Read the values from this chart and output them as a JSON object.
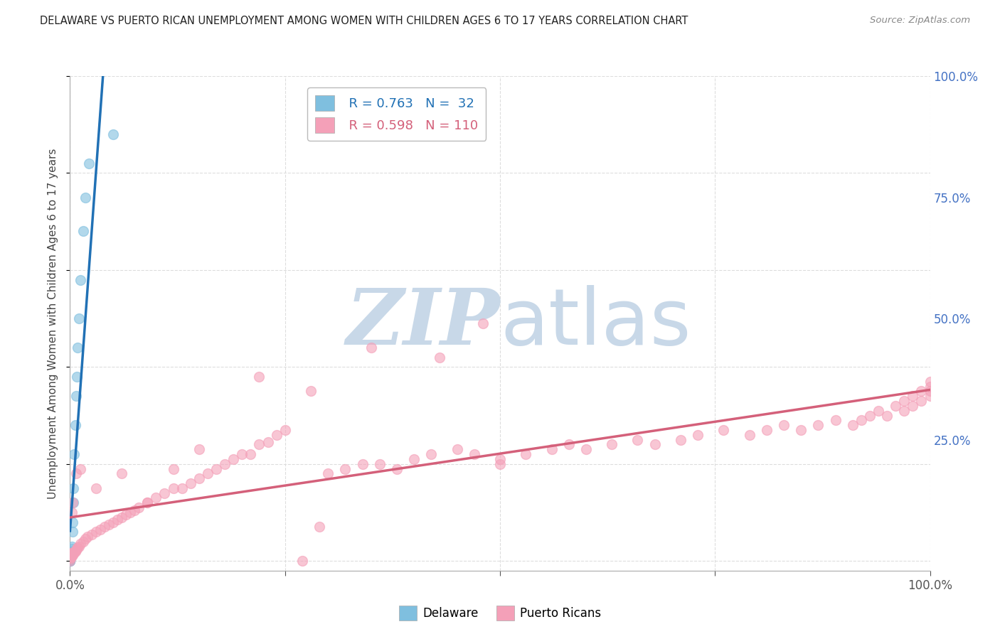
{
  "title": "DELAWARE VS PUERTO RICAN UNEMPLOYMENT AMONG WOMEN WITH CHILDREN AGES 6 TO 17 YEARS CORRELATION CHART",
  "source": "Source: ZipAtlas.com",
  "ylabel": "Unemployment Among Women with Children Ages 6 to 17 years",
  "xlim": [
    0,
    1.0
  ],
  "ylim": [
    -0.02,
    1.0
  ],
  "xtick_positions": [
    0.0,
    0.25,
    0.5,
    0.75,
    1.0
  ],
  "xtick_labels_show": [
    "0.0%",
    "",
    "",
    "",
    "100.0%"
  ],
  "ytick_right_positions": [
    0.0,
    0.25,
    0.5,
    0.75,
    1.0
  ],
  "ytick_right_labels": [
    "",
    "25.0%",
    "50.0%",
    "75.0%",
    "100.0%"
  ],
  "delaware_color": "#7fbfdf",
  "puerto_color": "#f4a0b8",
  "delaware_line_color": "#2171b5",
  "puerto_line_color": "#d4607a",
  "watermark_zip_color": "#c8d8e8",
  "watermark_atlas_color": "#c8d8e8",
  "background_color": "#ffffff",
  "grid_color": "#dddddd",
  "delaware_scatter_x": [
    0.0,
    0.0,
    0.0,
    0.0,
    0.0,
    0.0,
    0.0,
    0.0,
    0.0,
    0.0,
    0.0,
    0.0,
    0.0,
    0.001,
    0.001,
    0.002,
    0.002,
    0.003,
    0.003,
    0.004,
    0.004,
    0.005,
    0.006,
    0.007,
    0.008,
    0.009,
    0.01,
    0.012,
    0.015,
    0.018,
    0.022,
    0.05
  ],
  "delaware_scatter_y": [
    0.0,
    0.0,
    0.0,
    0.0,
    0.0,
    0.0,
    0.003,
    0.005,
    0.007,
    0.009,
    0.012,
    0.015,
    0.018,
    0.015,
    0.02,
    0.025,
    0.03,
    0.06,
    0.08,
    0.12,
    0.15,
    0.22,
    0.28,
    0.34,
    0.38,
    0.44,
    0.5,
    0.58,
    0.68,
    0.75,
    0.82,
    0.88
  ],
  "puerto_scatter_x": [
    0.0,
    0.0,
    0.0,
    0.0,
    0.001,
    0.001,
    0.002,
    0.002,
    0.003,
    0.003,
    0.004,
    0.005,
    0.006,
    0.007,
    0.008,
    0.009,
    0.01,
    0.012,
    0.015,
    0.018,
    0.02,
    0.025,
    0.03,
    0.035,
    0.04,
    0.045,
    0.05,
    0.055,
    0.06,
    0.065,
    0.07,
    0.075,
    0.08,
    0.09,
    0.1,
    0.11,
    0.12,
    0.13,
    0.14,
    0.15,
    0.16,
    0.17,
    0.18,
    0.19,
    0.2,
    0.21,
    0.22,
    0.23,
    0.24,
    0.25,
    0.27,
    0.29,
    0.3,
    0.32,
    0.34,
    0.36,
    0.38,
    0.4,
    0.42,
    0.45,
    0.47,
    0.5,
    0.53,
    0.56,
    0.58,
    0.6,
    0.63,
    0.66,
    0.68,
    0.71,
    0.73,
    0.76,
    0.79,
    0.81,
    0.83,
    0.85,
    0.87,
    0.89,
    0.91,
    0.92,
    0.93,
    0.94,
    0.95,
    0.96,
    0.97,
    0.97,
    0.98,
    0.98,
    0.99,
    0.99,
    1.0,
    1.0,
    1.0,
    1.0,
    0.002,
    0.003,
    0.007,
    0.012,
    0.03,
    0.06,
    0.09,
    0.12,
    0.15,
    0.22,
    0.28,
    0.5,
    0.0,
    0.43,
    0.35,
    0.48
  ],
  "puerto_scatter_y": [
    0.005,
    0.008,
    0.01,
    0.015,
    0.008,
    0.012,
    0.01,
    0.015,
    0.012,
    0.018,
    0.015,
    0.018,
    0.02,
    0.022,
    0.025,
    0.028,
    0.03,
    0.035,
    0.04,
    0.045,
    0.05,
    0.055,
    0.06,
    0.065,
    0.07,
    0.075,
    0.08,
    0.085,
    0.09,
    0.095,
    0.1,
    0.105,
    0.11,
    0.12,
    0.13,
    0.14,
    0.15,
    0.15,
    0.16,
    0.17,
    0.18,
    0.19,
    0.2,
    0.21,
    0.22,
    0.22,
    0.24,
    0.245,
    0.26,
    0.27,
    0.0,
    0.07,
    0.18,
    0.19,
    0.2,
    0.2,
    0.19,
    0.21,
    0.22,
    0.23,
    0.22,
    0.21,
    0.22,
    0.23,
    0.24,
    0.23,
    0.24,
    0.25,
    0.24,
    0.25,
    0.26,
    0.27,
    0.26,
    0.27,
    0.28,
    0.27,
    0.28,
    0.29,
    0.28,
    0.29,
    0.3,
    0.31,
    0.3,
    0.32,
    0.31,
    0.33,
    0.32,
    0.34,
    0.33,
    0.35,
    0.34,
    0.36,
    0.35,
    0.37,
    0.1,
    0.12,
    0.18,
    0.19,
    0.15,
    0.18,
    0.12,
    0.19,
    0.23,
    0.38,
    0.35,
    0.2,
    0.0,
    0.42,
    0.44,
    0.49
  ]
}
